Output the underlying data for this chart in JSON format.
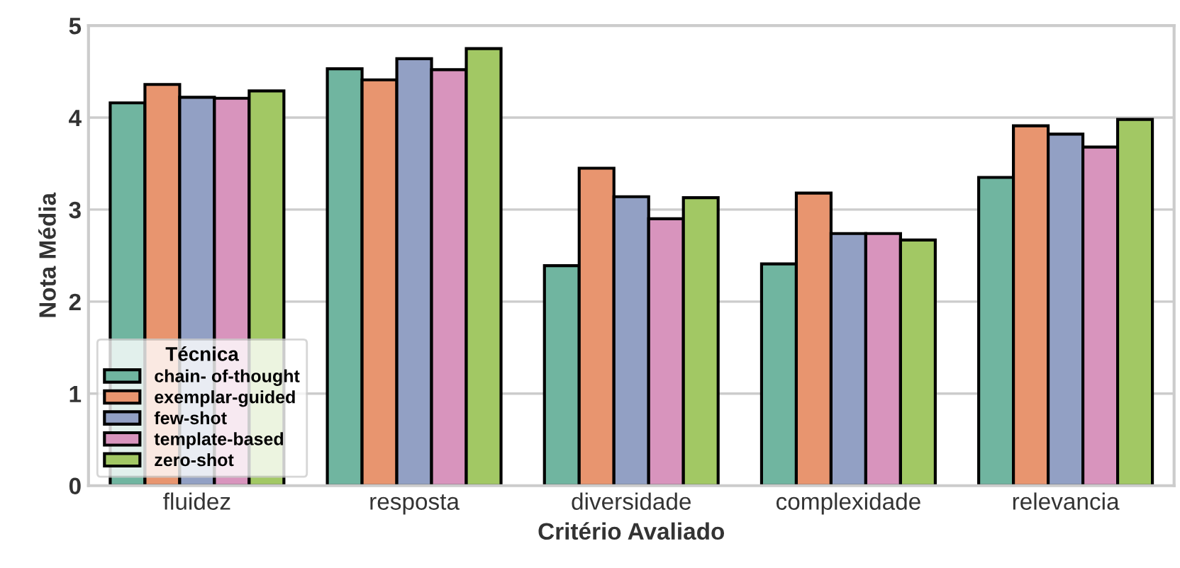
{
  "chart_data": {
    "type": "bar",
    "xlabel": "Critério Avaliado",
    "ylabel": "Nota Média",
    "legend_title": "Técnica",
    "categories": [
      "fluidez",
      "resposta",
      "diversidade",
      "complexidade",
      "relevancia"
    ],
    "series": [
      {
        "name": "chain- of-thought",
        "color": "#70b5a0",
        "values": [
          4.16,
          4.53,
          2.39,
          2.41,
          3.35
        ]
      },
      {
        "name": "exemplar-guided",
        "color": "#e8956f",
        "values": [
          4.36,
          4.41,
          3.45,
          3.18,
          3.91
        ]
      },
      {
        "name": "few-shot",
        "color": "#92a0c4",
        "values": [
          4.22,
          4.64,
          3.14,
          2.74,
          3.82
        ]
      },
      {
        "name": "template-based",
        "color": "#d894bd",
        "values": [
          4.21,
          4.52,
          2.9,
          2.74,
          3.68
        ]
      },
      {
        "name": "zero-shot",
        "color": "#a2c864",
        "values": [
          4.29,
          4.75,
          3.13,
          2.67,
          3.98
        ]
      }
    ],
    "ylim": [
      0,
      5
    ],
    "yticks": [
      0,
      1,
      2,
      3,
      4,
      5
    ],
    "grid": "y",
    "legend": "bottom left"
  }
}
